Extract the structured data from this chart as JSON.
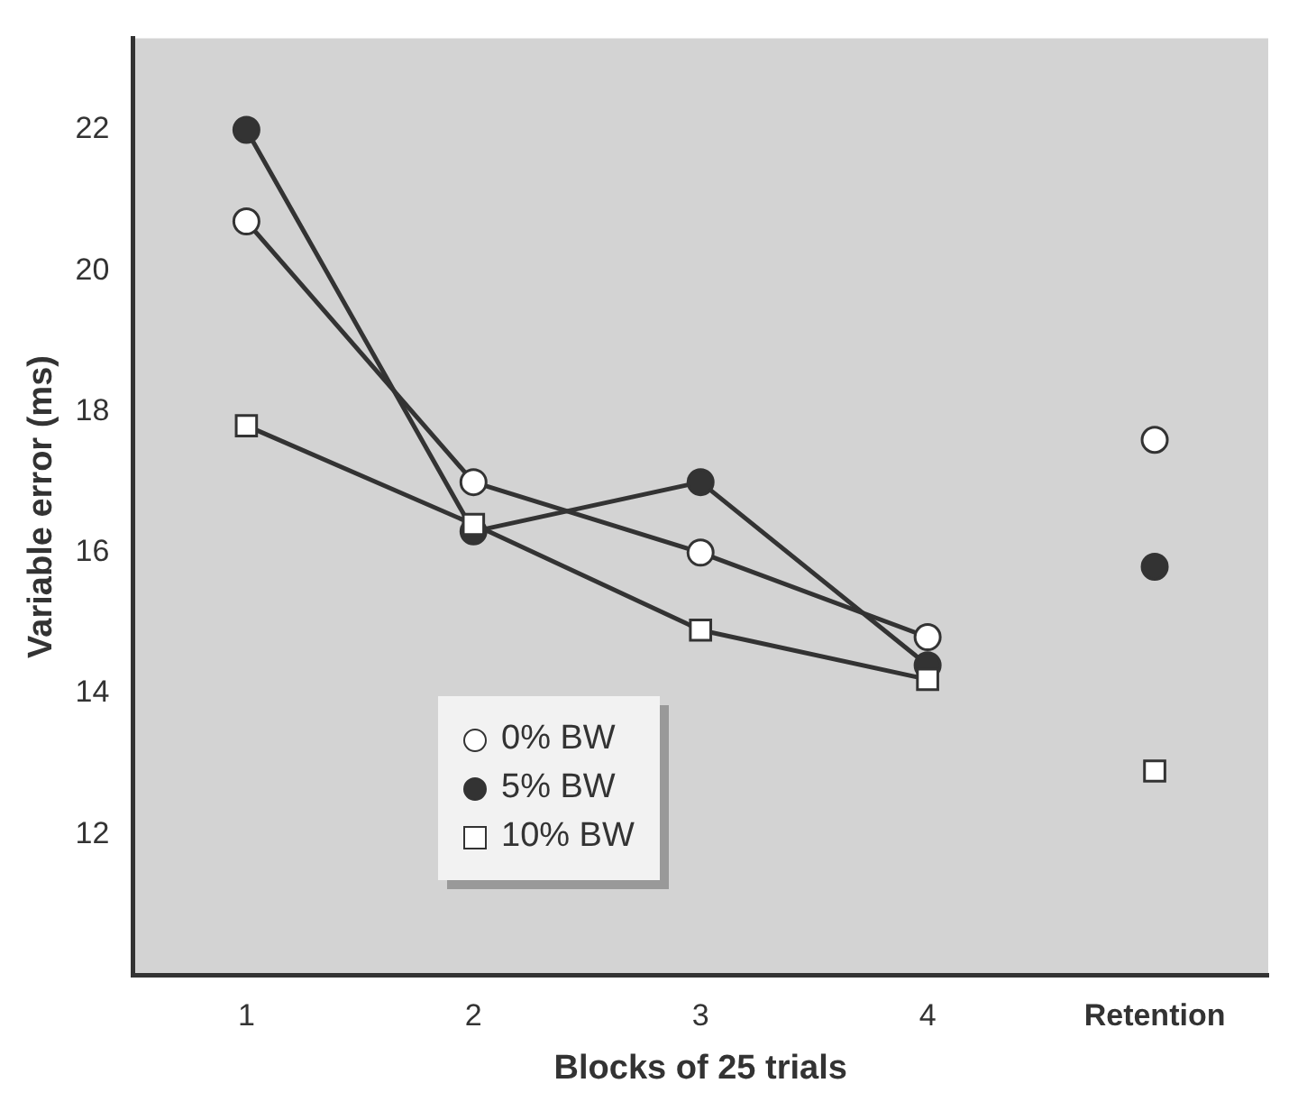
{
  "chart_data": {
    "type": "line",
    "xlabel": "Blocks of 25 trials",
    "ylabel": "Variable error (ms)",
    "categories": [
      "1",
      "2",
      "3",
      "4",
      "Retention"
    ],
    "series": [
      {
        "name": "0% BW",
        "color": "#ffffff",
        "marker": "circle",
        "values": [
          20.7,
          17.0,
          16.0,
          14.8,
          null
        ]
      },
      {
        "name": "5% BW",
        "color": "#333333",
        "marker": "circle",
        "values": [
          22.0,
          16.3,
          17.0,
          14.4,
          null
        ]
      },
      {
        "name": "10% BW",
        "color": "#ffffff",
        "marker": "square",
        "values": [
          17.8,
          16.4,
          14.9,
          14.2,
          null
        ]
      },
      {
        "type": "scatter",
        "color": "#ffffff",
        "marker": "circle",
        "values": [
          null,
          null,
          null,
          null,
          17.6
        ]
      },
      {
        "type": "scatter",
        "color": "#333333",
        "marker": "circle",
        "values": [
          null,
          null,
          null,
          null,
          15.8
        ]
      },
      {
        "type": "scatter",
        "color": "#ffffff",
        "marker": "square",
        "values": [
          null,
          null,
          null,
          null,
          12.9
        ]
      }
    ],
    "ylim": [
      10,
      23.3
    ],
    "yticks": [
      12,
      14,
      16,
      18,
      20,
      22
    ],
    "grid": false,
    "legend": "bottom left"
  }
}
